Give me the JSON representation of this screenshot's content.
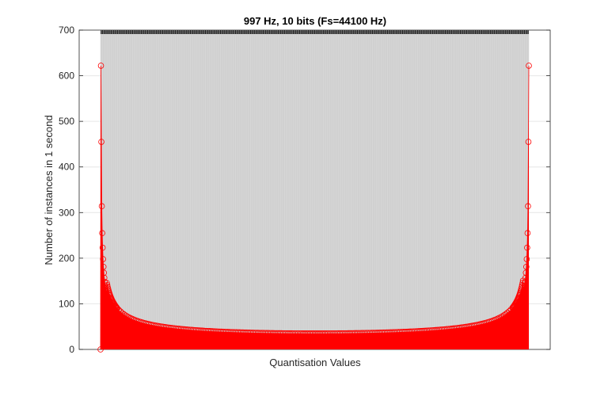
{
  "chart_data": {
    "type": "bar",
    "title": "997 Hz, 10 bits (Fs=44100 Hz)",
    "xlabel": "Quantisation Values",
    "ylabel": "Number of instances in 1 second",
    "ylim": [
      0,
      700
    ],
    "yticks": [
      0,
      100,
      200,
      300,
      400,
      500,
      600,
      700
    ],
    "grid": true,
    "bins": 1024,
    "series": [
      {
        "description": "histogram count per quantisation level (red stems/area)",
        "edge_values_left": [
          0,
          622,
          455,
          314,
          255,
          223,
          198,
          181,
          168,
          157,
          148,
          140,
          133,
          127,
          122
        ],
        "edge_values_right": [
          622,
          455,
          314,
          255,
          223,
          198,
          181,
          168,
          157,
          148,
          140,
          133,
          127,
          122
        ],
        "min_value_center": 35,
        "shape": "arcsine distribution of a sampled sine wave: ~35 in the middle, rising steeply toward both extremes"
      }
    ],
    "background_bar": {
      "value": 700,
      "color": "#d6d6d6",
      "cap_color": "#222222"
    },
    "colors": {
      "series": "#ff0000",
      "background": "#d6d6d6",
      "grid": "#e6e6e6"
    }
  }
}
